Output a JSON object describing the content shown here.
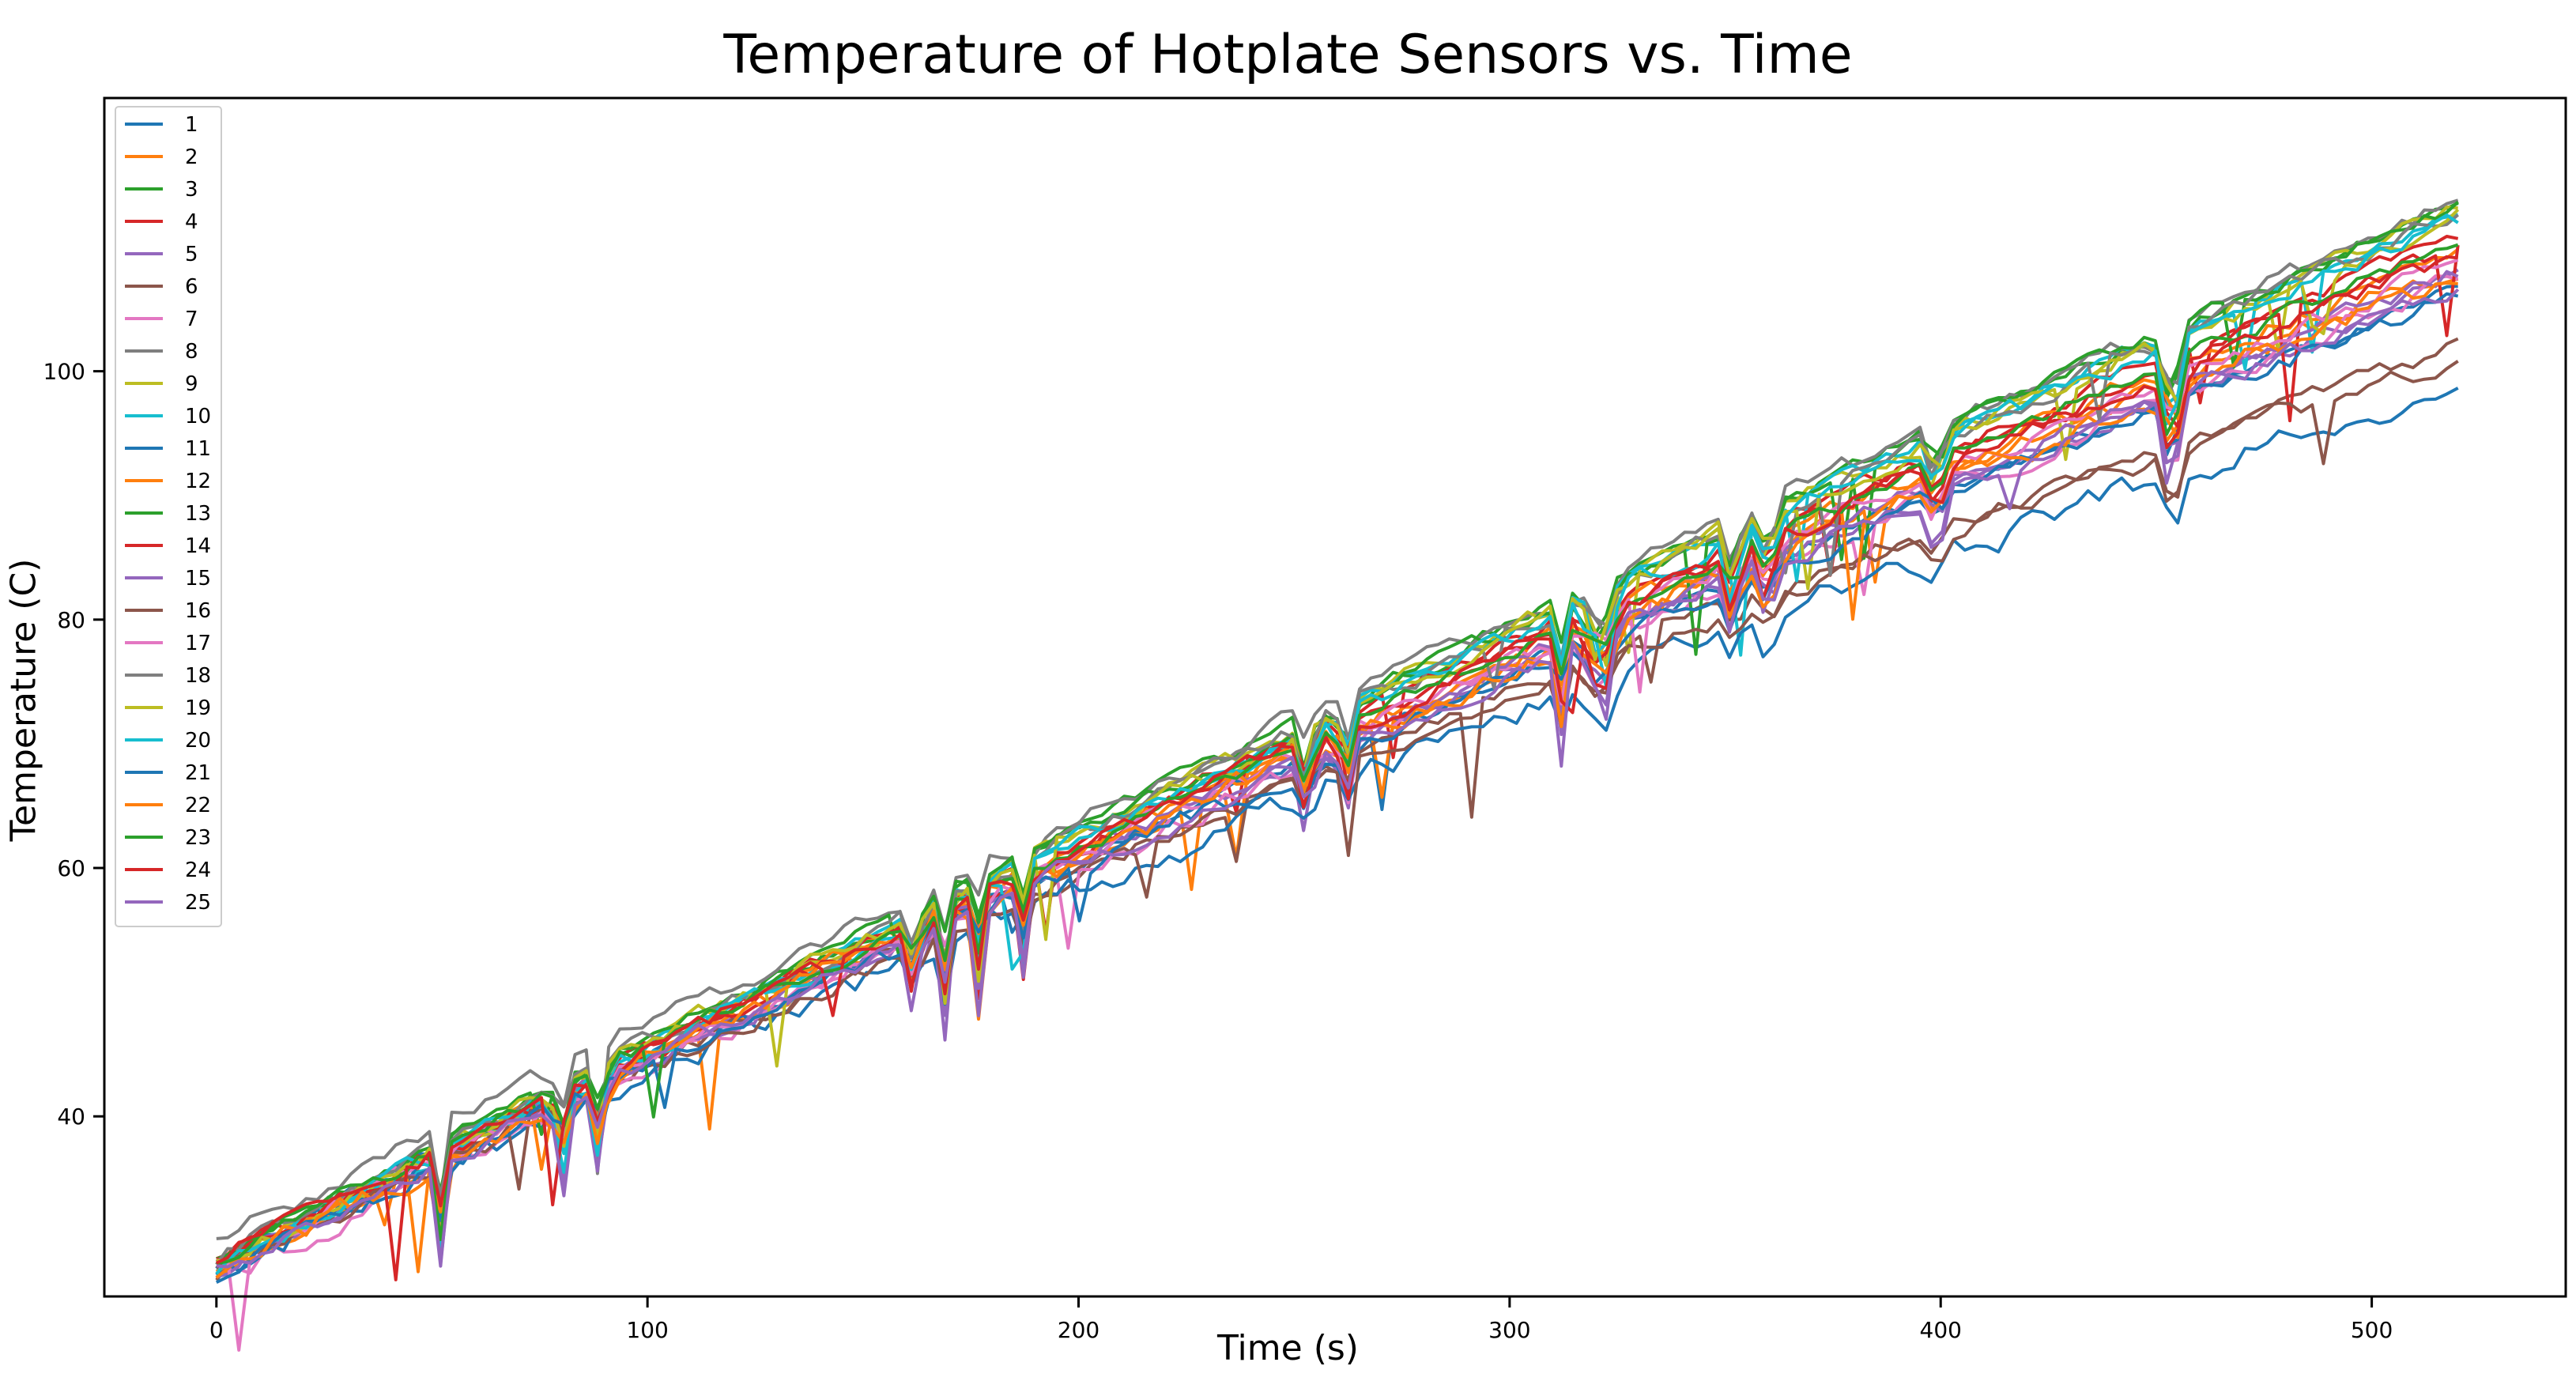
{
  "chart_data": {
    "type": "line",
    "title": "Temperature of Hotplate Sensors vs. Time",
    "xlabel": "Time (s)",
    "ylabel": "Temperature (C)",
    "xlim": [
      -26,
      545
    ],
    "ylim": [
      25.5,
      122
    ],
    "xticks": [
      0,
      100,
      200,
      300,
      400,
      500
    ],
    "yticks": [
      40,
      60,
      80,
      100
    ],
    "grid": false,
    "legend": "upper-left",
    "dip_times": [
      52,
      80,
      89,
      162,
      169,
      177,
      187,
      253,
      262,
      312,
      319,
      323,
      352,
      360,
      399,
      452,
      455
    ],
    "series": [
      {
        "name": "1",
        "color": "#1f77b4",
        "start": 28.2,
        "end": 106.8,
        "curve": 0.11,
        "noise": 0.5
      },
      {
        "name": "2",
        "color": "#ff7f0e",
        "start": 27.6,
        "end": 108.5,
        "curve": 0.1,
        "noise": 0.7
      },
      {
        "name": "3",
        "color": "#2ca02c",
        "start": 28.6,
        "end": 113.6,
        "curve": 0.09,
        "noise": 0.5
      },
      {
        "name": "4",
        "color": "#d62728",
        "start": 28.4,
        "end": 111.0,
        "curve": 0.1,
        "noise": 0.5
      },
      {
        "name": "5",
        "color": "#9467bd",
        "start": 27.8,
        "end": 107.2,
        "curve": 0.12,
        "noise": 0.6
      },
      {
        "name": "6",
        "color": "#8c564b",
        "start": 27.4,
        "end": 102.0,
        "curve": 0.2,
        "noise": 0.6
      },
      {
        "name": "7",
        "color": "#e377c2",
        "start": 26.6,
        "end": 107.6,
        "curve": 0.11,
        "noise": 0.7
      },
      {
        "name": "8",
        "color": "#7f7f7f",
        "start": 30.0,
        "end": 113.8,
        "curve": 0.08,
        "noise": 0.6
      },
      {
        "name": "9",
        "color": "#bcbd22",
        "start": 28.0,
        "end": 113.0,
        "curve": 0.1,
        "noise": 0.6
      },
      {
        "name": "10",
        "color": "#17becf",
        "start": 27.9,
        "end": 112.8,
        "curve": 0.1,
        "noise": 0.5
      },
      {
        "name": "11",
        "color": "#1f77b4",
        "start": 27.6,
        "end": 99.2,
        "curve": 0.19,
        "noise": 0.9
      },
      {
        "name": "12",
        "color": "#ff7f0e",
        "start": 27.7,
        "end": 109.6,
        "curve": 0.11,
        "noise": 0.7
      },
      {
        "name": "13",
        "color": "#2ca02c",
        "start": 28.8,
        "end": 113.4,
        "curve": 0.08,
        "noise": 0.5
      },
      {
        "name": "14",
        "color": "#d62728",
        "start": 28.2,
        "end": 110.2,
        "curve": 0.1,
        "noise": 0.6
      },
      {
        "name": "15",
        "color": "#9467bd",
        "start": 27.7,
        "end": 108.0,
        "curve": 0.11,
        "noise": 0.6
      },
      {
        "name": "16",
        "color": "#8c564b",
        "start": 27.3,
        "end": 101.0,
        "curve": 0.21,
        "noise": 0.6
      },
      {
        "name": "17",
        "color": "#e377c2",
        "start": 27.8,
        "end": 108.8,
        "curve": 0.11,
        "noise": 0.6
      },
      {
        "name": "18",
        "color": "#7f7f7f",
        "start": 28.6,
        "end": 112.6,
        "curve": 0.09,
        "noise": 0.6
      },
      {
        "name": "19",
        "color": "#bcbd22",
        "start": 28.3,
        "end": 112.2,
        "curve": 0.1,
        "noise": 0.6
      },
      {
        "name": "20",
        "color": "#17becf",
        "start": 27.8,
        "end": 112.0,
        "curve": 0.1,
        "noise": 0.6
      },
      {
        "name": "21",
        "color": "#1f77b4",
        "start": 27.2,
        "end": 106.2,
        "curve": 0.13,
        "noise": 0.7
      },
      {
        "name": "22",
        "color": "#ff7f0e",
        "start": 27.4,
        "end": 107.8,
        "curve": 0.12,
        "noise": 0.8
      },
      {
        "name": "23",
        "color": "#2ca02c",
        "start": 28.5,
        "end": 110.4,
        "curve": 0.09,
        "noise": 0.5
      },
      {
        "name": "24",
        "color": "#d62728",
        "start": 28.6,
        "end": 109.4,
        "curve": 0.1,
        "noise": 0.6
      },
      {
        "name": "25",
        "color": "#9467bd",
        "start": 27.6,
        "end": 106.8,
        "curve": 0.12,
        "noise": 0.6
      }
    ]
  }
}
